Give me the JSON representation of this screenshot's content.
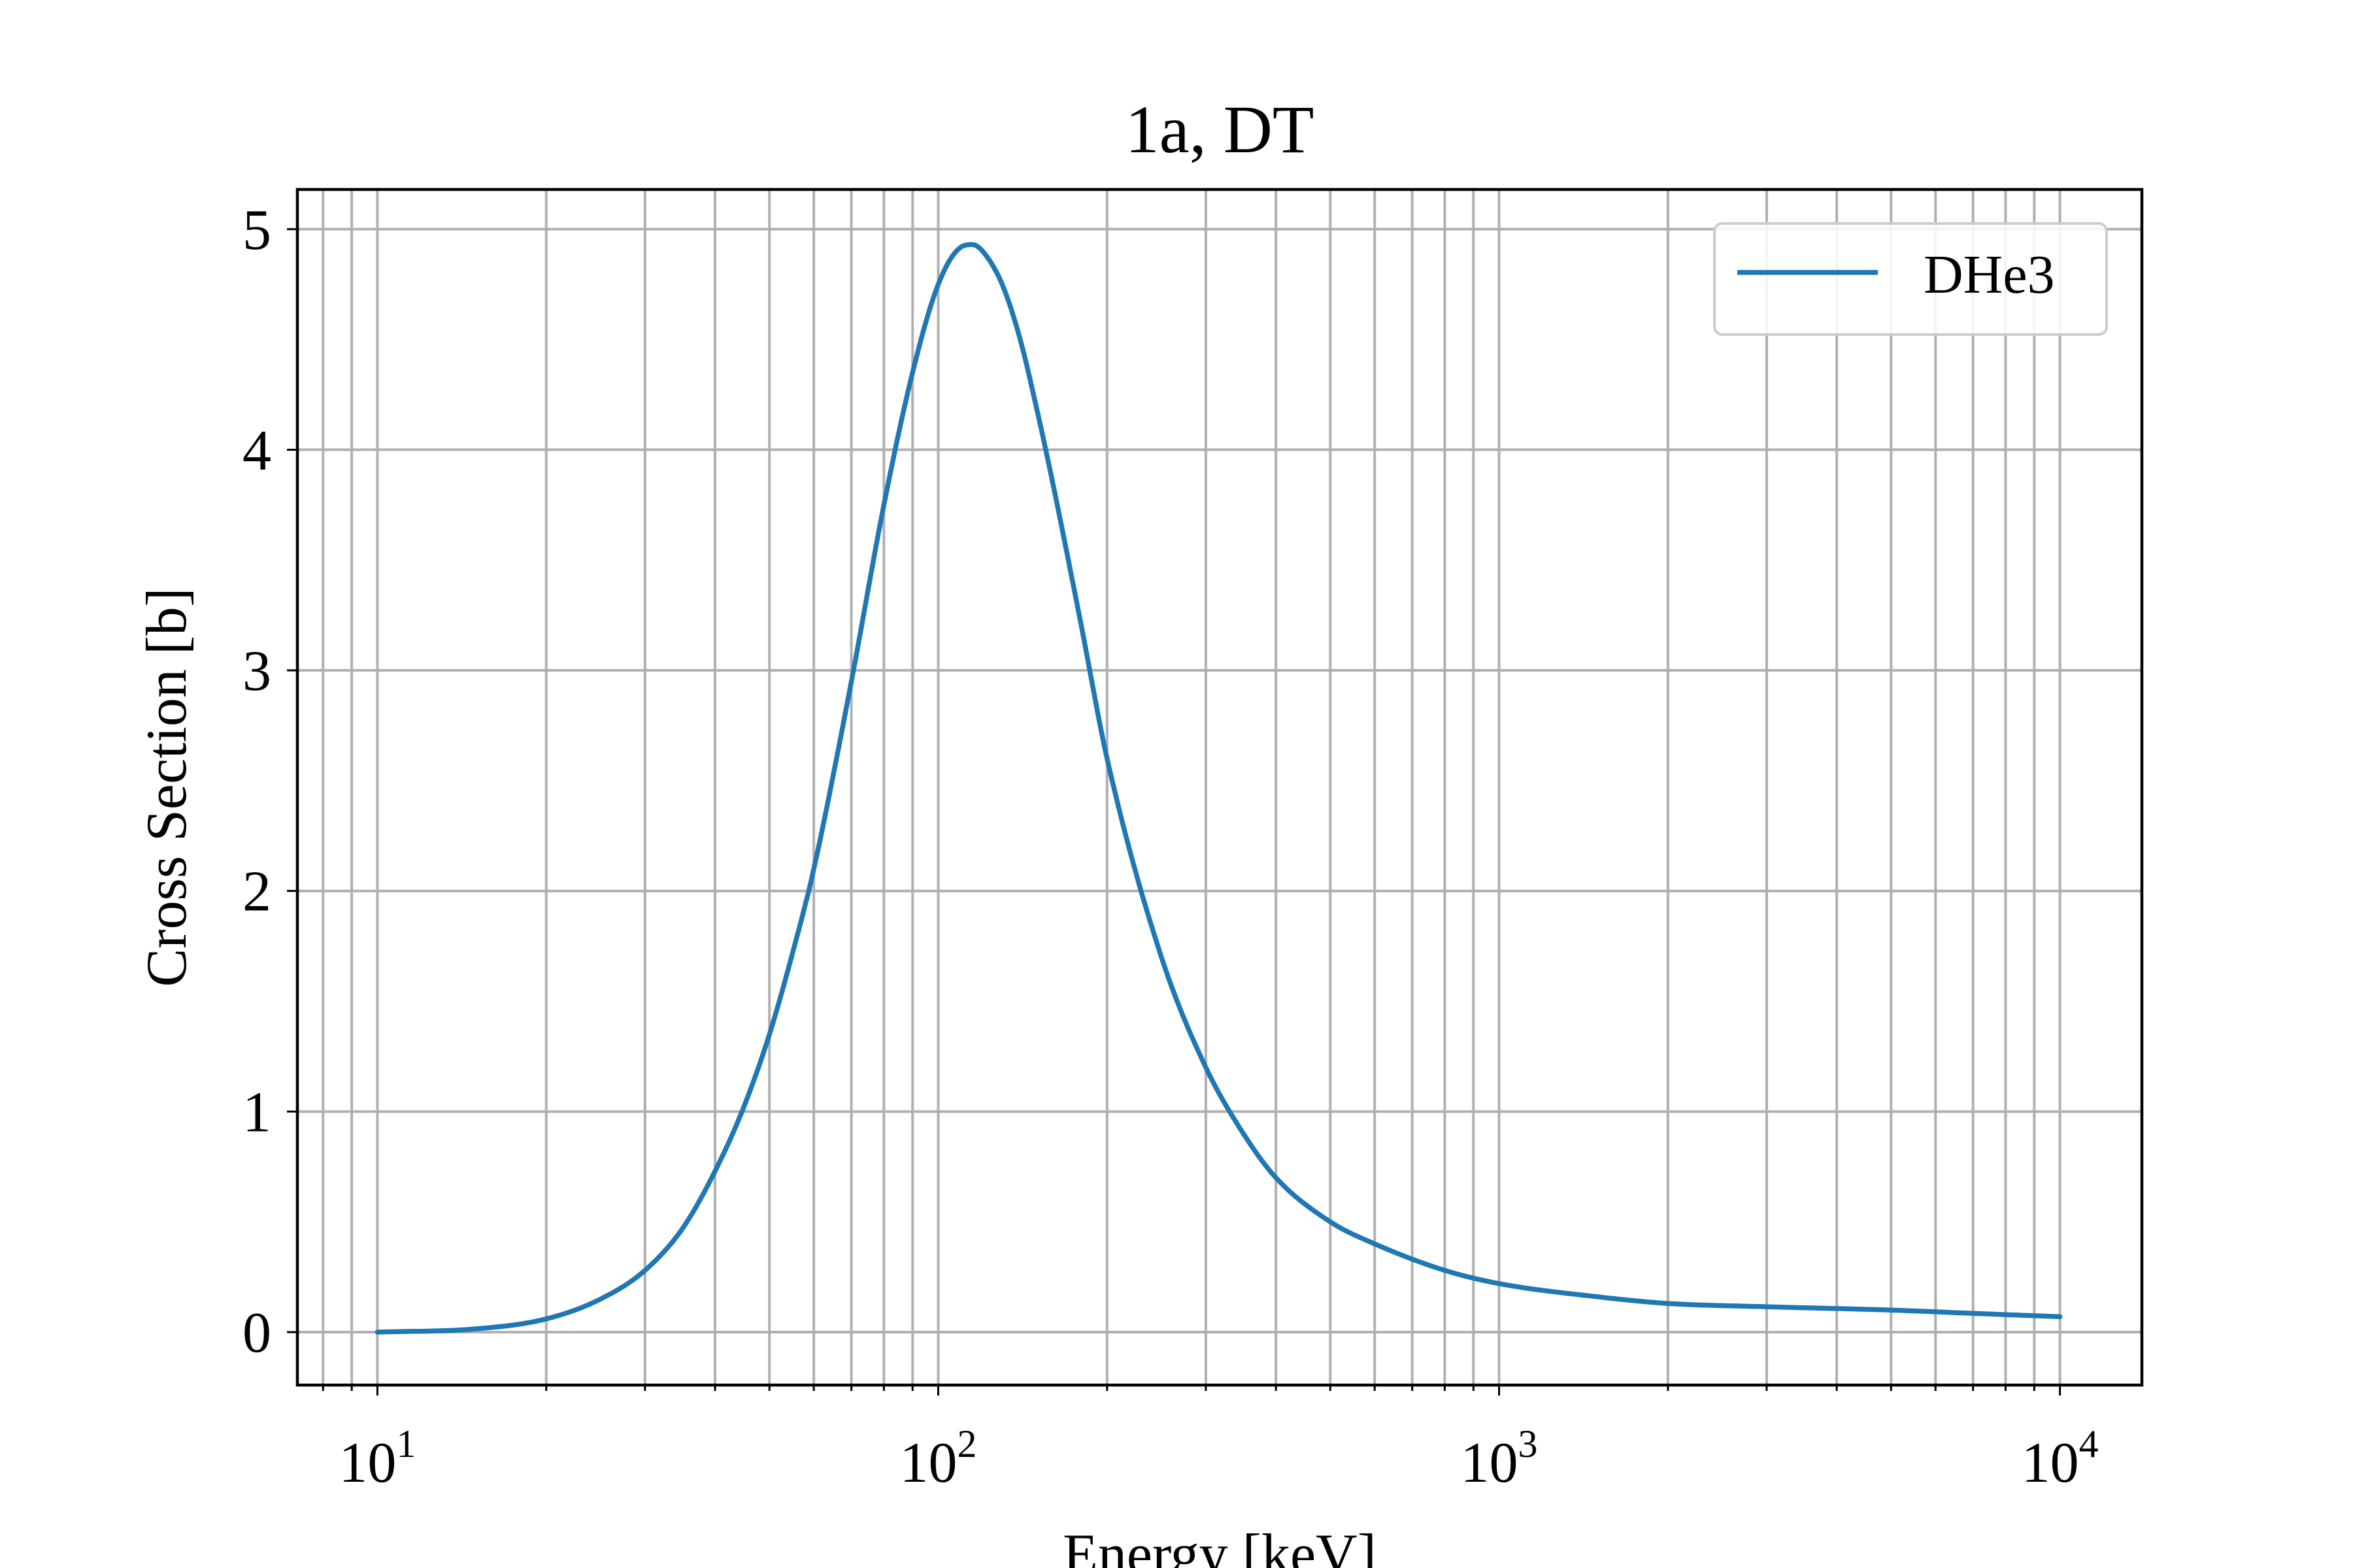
{
  "chart_data": {
    "type": "line",
    "title": "1a, DT",
    "xlabel": "Energy [keV]",
    "ylabel": "Cross Section [b]",
    "xscale": "log",
    "xlim": [
      7.2,
      14000
    ],
    "ylim": [
      -0.24,
      5.18
    ],
    "grid": true,
    "grid_minor": true,
    "legend_position": "top-right",
    "x_ticks": [
      {
        "base": "10",
        "exp": "1",
        "value": 10
      },
      {
        "base": "10",
        "exp": "2",
        "value": 100
      },
      {
        "base": "10",
        "exp": "3",
        "value": 1000
      },
      {
        "base": "10",
        "exp": "4",
        "value": 10000
      }
    ],
    "y_ticks": [
      {
        "label": "0",
        "value": 0
      },
      {
        "label": "1",
        "value": 1
      },
      {
        "label": "2",
        "value": 2
      },
      {
        "label": "3",
        "value": 3
      },
      {
        "label": "4",
        "value": 4
      },
      {
        "label": "5",
        "value": 5
      }
    ],
    "series": [
      {
        "name": "DHe3",
        "color": "#1f77b4",
        "x": [
          10,
          15,
          20,
          25,
          30,
          35,
          40,
          45,
          50,
          55,
          60,
          70,
          80,
          90,
          100,
          110,
          115,
          120,
          130,
          140,
          150,
          160,
          180,
          200,
          250,
          300,
          350,
          400,
          500,
          600,
          800,
          1000,
          1500,
          2000,
          3000,
          5000,
          7000,
          10000
        ],
        "y": [
          0.0,
          0.015,
          0.06,
          0.15,
          0.28,
          0.47,
          0.73,
          1.02,
          1.35,
          1.72,
          2.1,
          2.95,
          3.75,
          4.35,
          4.75,
          4.92,
          4.93,
          4.9,
          4.75,
          4.5,
          4.18,
          3.85,
          3.2,
          2.6,
          1.7,
          1.2,
          0.9,
          0.7,
          0.5,
          0.4,
          0.28,
          0.22,
          0.16,
          0.13,
          0.115,
          0.1,
          0.085,
          0.07
        ]
      }
    ]
  }
}
